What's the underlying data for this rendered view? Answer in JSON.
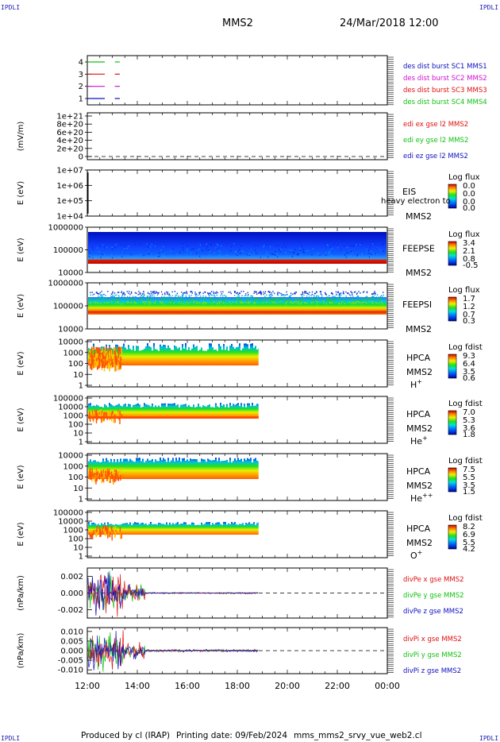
{
  "header": {
    "corner_label": "IPDLI",
    "spacecraft": "MMS2",
    "datetime": "24/Mar/2018 12:00"
  },
  "footer": {
    "produced_by": "Produced by cl (IRAP)",
    "printing_date": "Printing date: 09/Feb/2024",
    "filename": "mms_mms2_srvy_vue_web2.cl"
  },
  "time_axis": {
    "ticks": [
      "12:00",
      "14:00",
      "16:00",
      "18:00",
      "20:00",
      "22:00",
      "00:00"
    ],
    "range_hours": [
      12,
      24
    ]
  },
  "colors": {
    "red": "#e01010",
    "green": "#10c010",
    "blue": "#1010c0",
    "magenta": "#d010d0"
  },
  "chart_data": [
    {
      "type": "line",
      "panel": "burst",
      "yticks": [
        "1",
        "2",
        "3",
        "4"
      ],
      "ylim": [
        0.5,
        4.5
      ],
      "legend": [
        {
          "label": "des dist burst SC1 MMS1",
          "color": "#1010c0"
        },
        {
          "label": "des dist burst SC2 MMS2",
          "color": "#d010d0"
        },
        {
          "label": "des dist burst SC3 MMS3",
          "color": "#e01010"
        },
        {
          "label": "des dist burst SC4 MMS4",
          "color": "#10c010"
        }
      ],
      "segments": [
        {
          "sc": 1,
          "x": [
            [
              12.0,
              12.7
            ],
            [
              13.1,
              13.3
            ]
          ]
        },
        {
          "sc": 2,
          "x": [
            [
              12.0,
              12.7
            ],
            [
              13.1,
              13.3
            ]
          ]
        },
        {
          "sc": 3,
          "x": [
            [
              12.0,
              12.7
            ],
            [
              13.1,
              13.3
            ]
          ]
        },
        {
          "sc": 4,
          "x": [
            [
              12.0,
              12.7
            ],
            [
              13.1,
              13.3
            ]
          ]
        }
      ]
    },
    {
      "type": "line",
      "panel": "edi",
      "ylabel": "(mV/m)",
      "yticks": [
        "0",
        "2e+20",
        "4e+20",
        "6e+20",
        "8e+20",
        "1e+21"
      ],
      "ylim": [
        0,
        1e+21
      ],
      "legend": [
        {
          "label": "edi ex gse l2 MMS2",
          "color": "#e01010"
        },
        {
          "label": "edi ey gse l2 MMS2",
          "color": "#10c010"
        },
        {
          "label": "edi ez gse l2 MMS2",
          "color": "#1010c0"
        }
      ]
    },
    {
      "type": "heatmap",
      "panel": "eis",
      "ylabel": "E (eV)",
      "yticks": [
        "1e+04",
        "1e+05",
        "1e+06",
        "1e+07"
      ],
      "instrument": "EIS",
      "sc": "MMS2",
      "overlay_text": "heavy electron to",
      "colorbar": {
        "title": "Log flux",
        "ticks": [
          "0.0",
          "0.0",
          "0.0",
          "0.0"
        ]
      }
    },
    {
      "type": "heatmap",
      "panel": "feepse",
      "ylabel": "E (eV)",
      "yticks": [
        "10000",
        "100000",
        "1000000"
      ],
      "instrument": "FEEPSE",
      "sc": "MMS2",
      "colorbar": {
        "title": "Log flux",
        "ticks": [
          "3.4",
          "2.1",
          "0.8",
          "-0.5"
        ]
      }
    },
    {
      "type": "heatmap",
      "panel": "feepsi",
      "ylabel": "E (eV)",
      "yticks": [
        "10000",
        "100000",
        "1000000"
      ],
      "instrument": "FEEPSI",
      "sc": "MMS2",
      "colorbar": {
        "title": "Log flux",
        "ticks": [
          "1.7",
          "1.2",
          "0.7",
          "0.3"
        ]
      }
    },
    {
      "type": "heatmap",
      "panel": "hpca_h",
      "ylabel": "E (eV)",
      "yticks": [
        "1",
        "10",
        "100",
        "1000",
        "10000"
      ],
      "instrument": "HPCA",
      "sc": "MMS2",
      "species": "H",
      "species_sup": "+",
      "colorbar": {
        "title": "Log fdist",
        "ticks": [
          "9.3",
          "6.4",
          "3.5",
          "0.6"
        ]
      }
    },
    {
      "type": "heatmap",
      "panel": "hpca_he",
      "ylabel": "E (eV)",
      "yticks": [
        "1",
        "10",
        "100",
        "1000",
        "10000",
        "100000"
      ],
      "instrument": "HPCA",
      "sc": "MMS2",
      "species": "He",
      "species_sup": "+",
      "colorbar": {
        "title": "Log fdist",
        "ticks": [
          "7.0",
          "5.3",
          "3.6",
          "1.8"
        ]
      }
    },
    {
      "type": "heatmap",
      "panel": "hpca_hepp",
      "ylabel": "E (eV)",
      "yticks": [
        "1",
        "10",
        "100",
        "1000",
        "10000"
      ],
      "instrument": "HPCA",
      "sc": "MMS2",
      "species": "He",
      "species_sup": "++",
      "colorbar": {
        "title": "Log fdist",
        "ticks": [
          "7.5",
          "5.5",
          "3.5",
          "1.5"
        ]
      }
    },
    {
      "type": "heatmap",
      "panel": "hpca_o",
      "ylabel": "E (eV)",
      "yticks": [
        "1",
        "10",
        "100",
        "1000",
        "10000",
        "100000"
      ],
      "instrument": "HPCA",
      "sc": "MMS2",
      "species": "O",
      "species_sup": "+",
      "colorbar": {
        "title": "Log fdist",
        "ticks": [
          "8.2",
          "6.9",
          "5.5",
          "4.2"
        ]
      }
    },
    {
      "type": "line",
      "panel": "divpe",
      "ylabel": "(nPa/km)",
      "yticks": [
        "-0.002",
        "0.000",
        "0.002"
      ],
      "ylim": [
        -0.003,
        0.003
      ],
      "legend": [
        {
          "label": "divPe x gse MMS2",
          "color": "#e01010"
        },
        {
          "label": "divPe y gse MMS2",
          "color": "#10c010"
        },
        {
          "label": "divPe z gse MMS2",
          "color": "#1010c0"
        }
      ]
    },
    {
      "type": "line",
      "panel": "divpi",
      "ylabel": "(nPa/km)",
      "yticks": [
        "-0.010",
        "-0.005",
        "0.000",
        "0.005",
        "0.010"
      ],
      "ylim": [
        -0.012,
        0.012
      ],
      "legend": [
        {
          "label": "divPi x gse MMS2",
          "color": "#e01010"
        },
        {
          "label": "divPi y gse MMS2",
          "color": "#10c010"
        },
        {
          "label": "divPi z gse MMS2",
          "color": "#1010c0"
        }
      ]
    }
  ]
}
